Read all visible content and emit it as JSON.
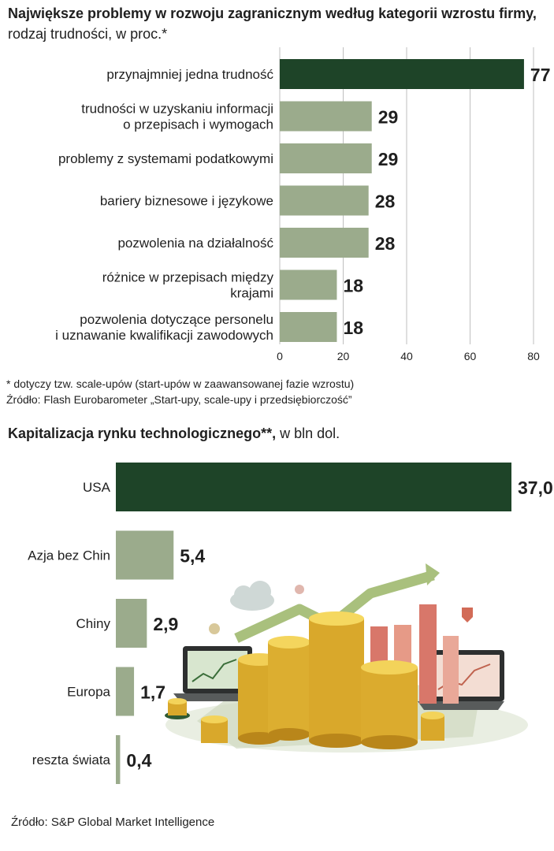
{
  "colors": {
    "highlight": "#1e4428",
    "bar": "#9bab8c",
    "grid": "#bfbfbf",
    "text": "#1f1f1f"
  },
  "chart1_title": {
    "bold": "Największe problemy w rozwoju zagranicznym według kategorii wzrostu firmy,",
    "rest": " rodzaj trudności, w proc.*"
  },
  "chart1_footnote": "* dotyczy tzw. scale-upów (start-upów w zaawansowanej fazie wzrostu)",
  "chart1_source": "Źródło: Flash Eurobarometer „Start-upy, scale-upy i przedsiębiorczość”",
  "chart2_title": {
    "bold": "Kapitalizacja rynku technologicznego**,",
    "rest": " w bln dol."
  },
  "chart2_source": "Źródło: S&P Global Market Intelligence",
  "illustration": {
    "icon": "coins-and-growth-chart-illustration"
  },
  "chart_data": [
    {
      "type": "bar",
      "orientation": "horizontal",
      "title": "Największe problemy w rozwoju zagranicznym według kategorii wzrostu firmy, rodzaj trudności, w proc.*",
      "categories": [
        [
          "przynajmniej jedna trudność"
        ],
        [
          "trudności w uzyskaniu informacji",
          "o przepisach i wymogach"
        ],
        [
          "problemy z systemami podatkowymi"
        ],
        [
          "bariery biznesowe i językowe"
        ],
        [
          "pozwolenia na działalność"
        ],
        [
          "różnice w przepisach między",
          "krajami"
        ],
        [
          "pozwolenia dotyczące personelu",
          "i uznawanie kwalifikacji zawodowych"
        ]
      ],
      "values": [
        77,
        29,
        29,
        28,
        28,
        18,
        18
      ],
      "value_labels": [
        "77",
        "29",
        "29",
        "28",
        "28",
        "18",
        "18"
      ],
      "highlight_index": 0,
      "xlim": [
        0,
        80
      ],
      "xticks": [
        0,
        20,
        40,
        60,
        80
      ],
      "xtick_labels": [
        "0",
        "20",
        "40",
        "60",
        "80"
      ],
      "grid": true
    },
    {
      "type": "bar",
      "orientation": "horizontal",
      "title": "Kapitalizacja rynku technologicznego**, w bln dol.",
      "categories": [
        [
          "USA"
        ],
        [
          "Azja bez Chin"
        ],
        [
          "Chiny"
        ],
        [
          "Europa"
        ],
        [
          "reszta świata"
        ]
      ],
      "values": [
        37.0,
        5.4,
        2.9,
        1.7,
        0.4
      ],
      "value_labels": [
        "37,0",
        "5,4",
        "2,9",
        "1,7",
        "0,4"
      ],
      "highlight_index": 0,
      "grid": false
    }
  ]
}
